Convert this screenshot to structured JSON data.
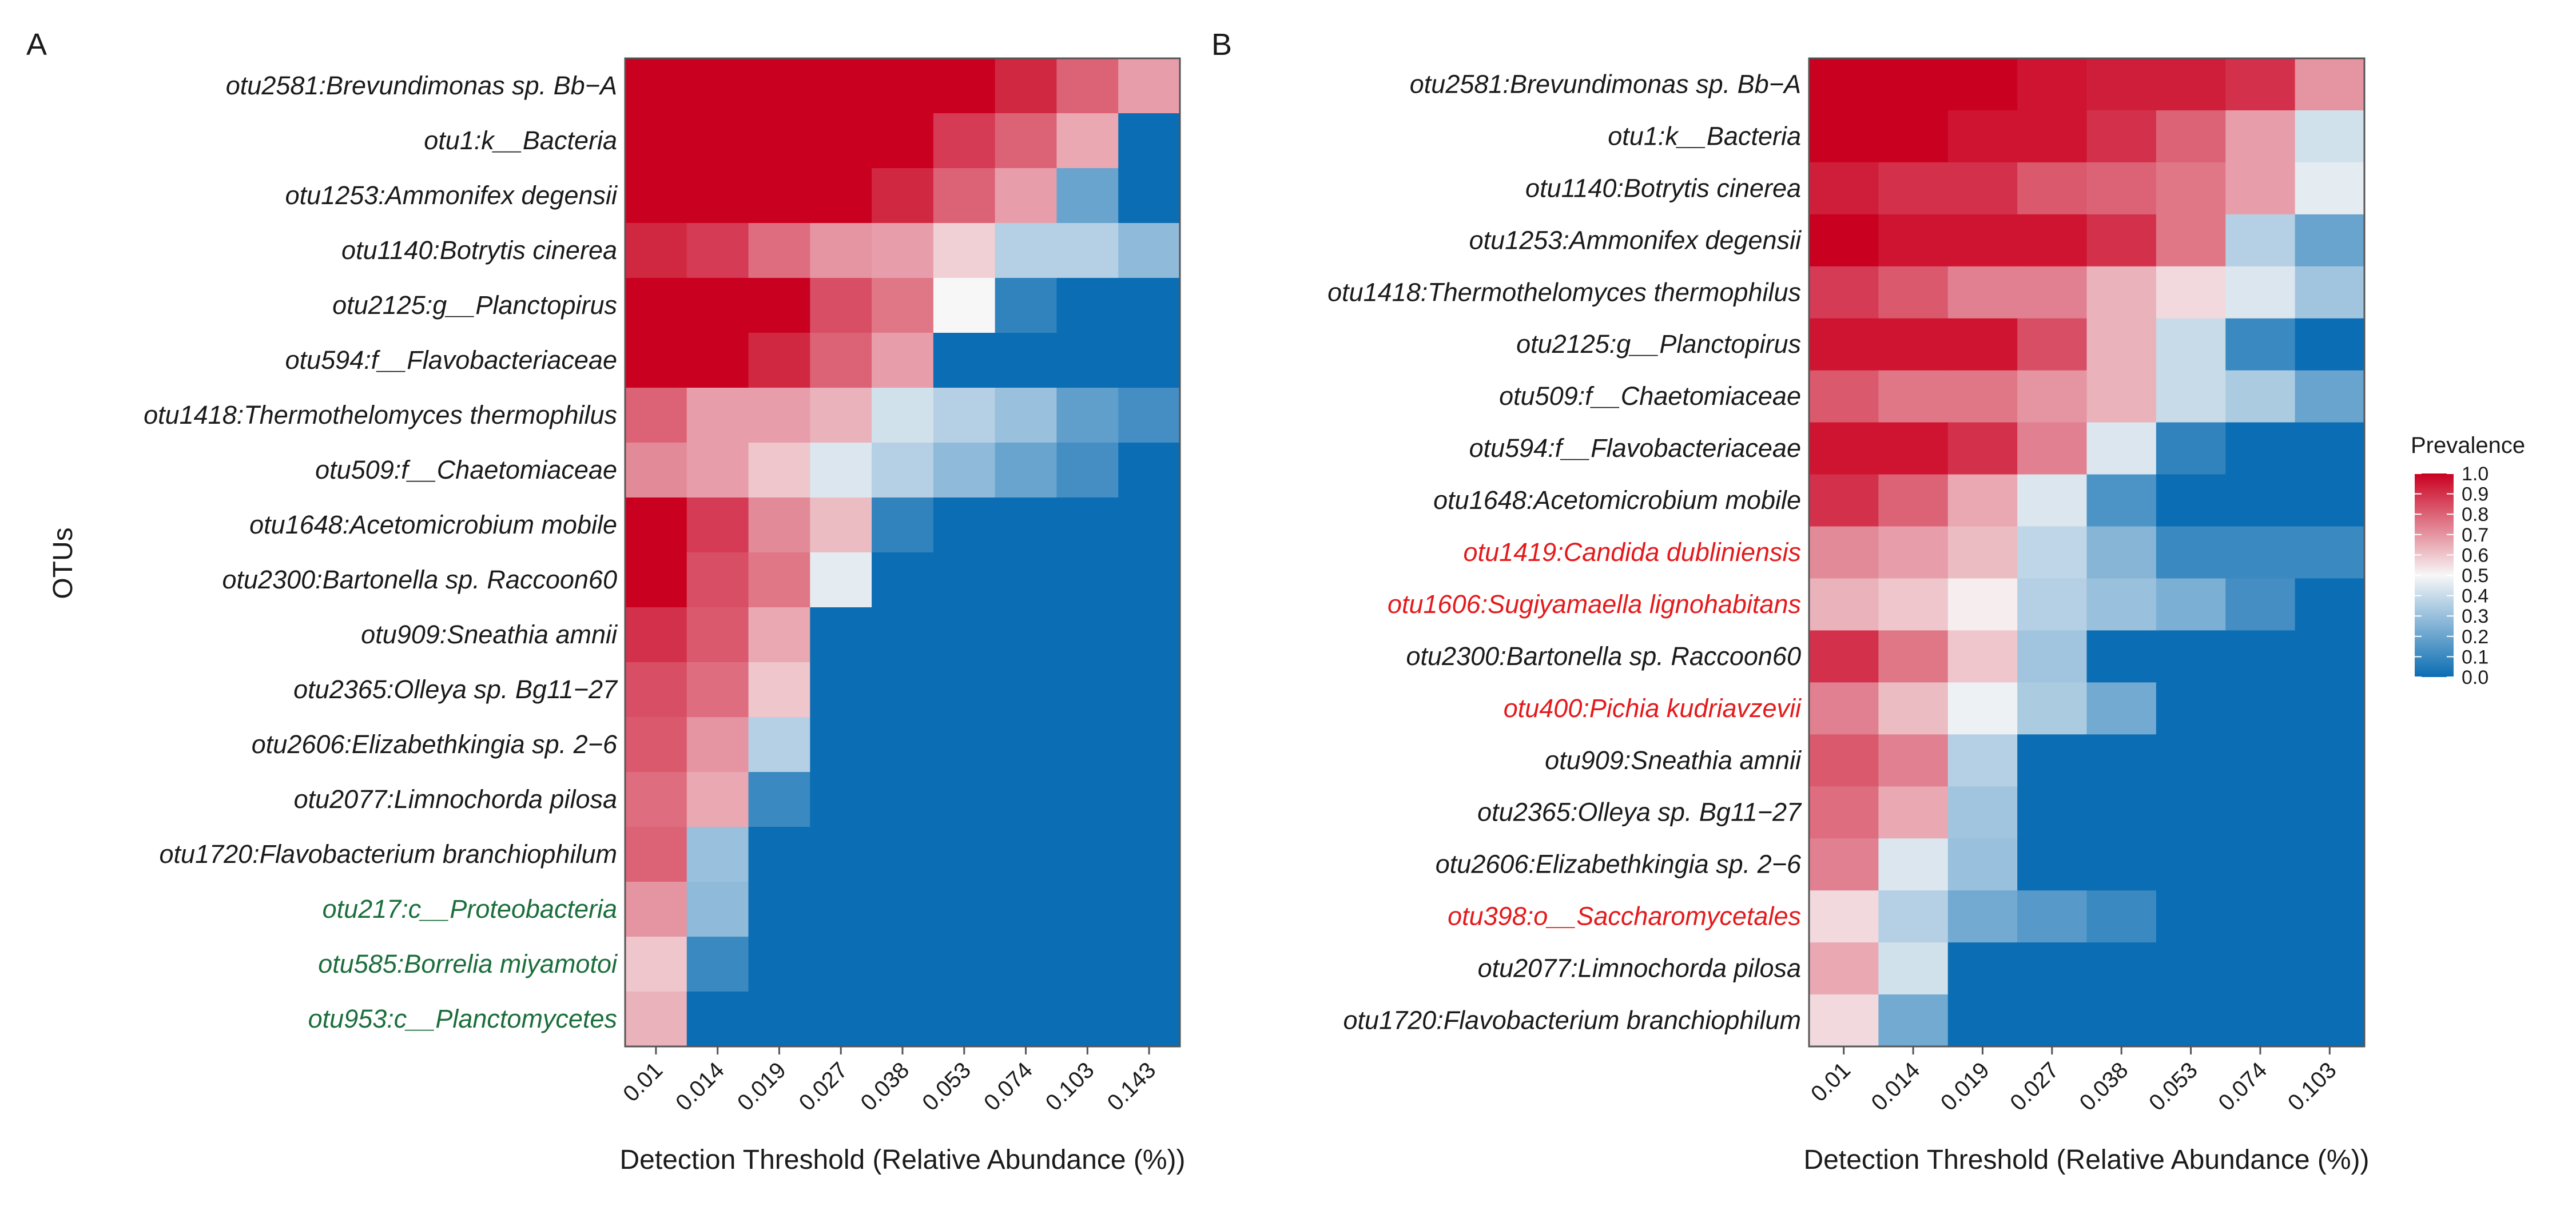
{
  "colors": {
    "low": "#0b6db3",
    "mid": "#f7f7f7",
    "high": "#ca0020",
    "highlight_green": "#1b6e3b",
    "highlight_red": "#e41a1c"
  },
  "legend": {
    "title": "Prevalence",
    "ticks": [
      "1.0",
      "0.9",
      "0.8",
      "0.7",
      "0.6",
      "0.5",
      "0.4",
      "0.3",
      "0.2",
      "0.1",
      "0.0"
    ]
  },
  "chart_data": [
    {
      "type": "heatmap",
      "panel_label": "A",
      "xlabel": "Detection Threshold (Relative Abundance (%))",
      "ylabel": "OTUs",
      "x": [
        "0.01",
        "0.014",
        "0.019",
        "0.027",
        "0.038",
        "0.053",
        "0.074",
        "0.103",
        "0.143"
      ],
      "y": [
        "otu2581:Brevundimonas sp. Bb−A",
        "otu1:k__Bacteria",
        "otu1253:Ammonifex degensii",
        "otu1140:Botrytis cinerea",
        "otu2125:g__Planctopirus",
        "otu594:f__Flavobacteriaceae",
        "otu1418:Thermothelomyces thermophilus",
        "otu509:f__Chaetomiaceae",
        "otu1648:Acetomicrobium mobile",
        "otu2300:Bartonella sp. Raccoon60",
        "otu909:Sneathia amnii",
        "otu2365:Olleya sp. Bg11−27",
        "otu2606:Elizabethkingia sp. 2−6",
        "otu2077:Limnochorda pilosa",
        "otu1720:Flavobacterium branchiophilum",
        "otu217:c__Proteobacteria",
        "otu585:Borrelia miyamotoi",
        "otu953:c__Planctomycetes"
      ],
      "highlighted_labels": {
        "otu217:c__Proteobacteria": "green",
        "otu585:Borrelia miyamotoi": "green",
        "otu953:c__Planctomycetes": "green"
      },
      "values": [
        [
          1.0,
          1.0,
          1.0,
          1.0,
          1.0,
          1.0,
          0.92,
          0.8,
          0.68
        ],
        [
          1.0,
          1.0,
          1.0,
          1.0,
          1.0,
          0.88,
          0.8,
          0.66,
          0.0
        ],
        [
          1.0,
          1.0,
          1.0,
          1.0,
          0.92,
          0.8,
          0.68,
          0.2,
          0.0
        ],
        [
          0.92,
          0.88,
          0.78,
          0.7,
          0.68,
          0.58,
          0.36,
          0.36,
          0.28
        ],
        [
          1.0,
          1.0,
          1.0,
          0.84,
          0.76,
          0.5,
          0.08,
          0.0,
          0.0
        ],
        [
          1.0,
          1.0,
          0.92,
          0.8,
          0.68,
          0.0,
          0.0,
          0.0,
          0.0
        ],
        [
          0.8,
          0.68,
          0.68,
          0.64,
          0.42,
          0.36,
          0.3,
          0.18,
          0.12
        ],
        [
          0.72,
          0.68,
          0.6,
          0.44,
          0.36,
          0.28,
          0.2,
          0.12,
          0.0
        ],
        [
          1.0,
          0.88,
          0.72,
          0.62,
          0.08,
          0.0,
          0.0,
          0.0,
          0.0
        ],
        [
          1.0,
          0.84,
          0.76,
          0.46,
          0.0,
          0.0,
          0.0,
          0.0,
          0.0
        ],
        [
          0.9,
          0.82,
          0.66,
          0.0,
          0.0,
          0.0,
          0.0,
          0.0,
          0.0
        ],
        [
          0.84,
          0.78,
          0.6,
          0.0,
          0.0,
          0.0,
          0.0,
          0.0,
          0.0
        ],
        [
          0.82,
          0.7,
          0.36,
          0.0,
          0.0,
          0.0,
          0.0,
          0.0,
          0.0
        ],
        [
          0.78,
          0.66,
          0.1,
          0.0,
          0.0,
          0.0,
          0.0,
          0.0,
          0.0
        ],
        [
          0.8,
          0.3,
          0.0,
          0.0,
          0.0,
          0.0,
          0.0,
          0.0,
          0.0
        ],
        [
          0.7,
          0.28,
          0.0,
          0.0,
          0.0,
          0.0,
          0.0,
          0.0,
          0.0
        ],
        [
          0.6,
          0.1,
          0.0,
          0.0,
          0.0,
          0.0,
          0.0,
          0.0,
          0.0
        ],
        [
          0.64,
          0.0,
          0.0,
          0.0,
          0.0,
          0.0,
          0.0,
          0.0,
          0.0
        ]
      ]
    },
    {
      "type": "heatmap",
      "panel_label": "B",
      "xlabel": "Detection Threshold (Relative Abundance (%))",
      "ylabel": "",
      "x": [
        "0.01",
        "0.014",
        "0.019",
        "0.027",
        "0.038",
        "0.053",
        "0.074",
        "0.103"
      ],
      "y": [
        "otu2581:Brevundimonas sp. Bb−A",
        "otu1:k__Bacteria",
        "otu1140:Botrytis cinerea",
        "otu1253:Ammonifex degensii",
        "otu1418:Thermothelomyces thermophilus",
        "otu2125:g__Planctopirus",
        "otu509:f__Chaetomiaceae",
        "otu594:f__Flavobacteriaceae",
        "otu1648:Acetomicrobium mobile",
        "otu1419:Candida dubliniensis",
        "otu1606:Sugiyamaella lignohabitans",
        "otu2300:Bartonella sp. Raccoon60",
        "otu400:Pichia kudriavzevii",
        "otu909:Sneathia amnii",
        "otu2365:Olleya sp. Bg11−27",
        "otu2606:Elizabethkingia sp. 2−6",
        "otu398:o__Saccharomycetales",
        "otu2077:Limnochorda pilosa",
        "otu1720:Flavobacterium branchiophilum"
      ],
      "highlighted_labels": {
        "otu1419:Candida dubliniensis": "red",
        "otu1606:Sugiyamaella lignohabitans": "red",
        "otu400:Pichia kudriavzevii": "red",
        "otu398:o__Saccharomycetales": "red"
      },
      "values": [
        [
          1.0,
          1.0,
          1.0,
          0.96,
          0.94,
          0.94,
          0.9,
          0.7
        ],
        [
          1.0,
          1.0,
          0.96,
          0.96,
          0.9,
          0.8,
          0.68,
          0.42
        ],
        [
          0.94,
          0.9,
          0.9,
          0.82,
          0.8,
          0.76,
          0.68,
          0.46
        ],
        [
          1.0,
          0.96,
          0.96,
          0.96,
          0.9,
          0.76,
          0.36,
          0.2
        ],
        [
          0.88,
          0.82,
          0.74,
          0.74,
          0.64,
          0.56,
          0.44,
          0.32
        ],
        [
          0.96,
          0.96,
          0.96,
          0.84,
          0.64,
          0.4,
          0.1,
          0.0
        ],
        [
          0.82,
          0.76,
          0.76,
          0.7,
          0.64,
          0.4,
          0.34,
          0.2
        ],
        [
          0.96,
          0.96,
          0.9,
          0.74,
          0.44,
          0.08,
          0.0,
          0.0
        ],
        [
          0.9,
          0.8,
          0.66,
          0.44,
          0.14,
          0.0,
          0.0,
          0.0
        ],
        [
          0.72,
          0.68,
          0.62,
          0.38,
          0.26,
          0.1,
          0.1,
          0.1
        ],
        [
          0.64,
          0.6,
          0.52,
          0.36,
          0.3,
          0.24,
          0.12,
          0.0
        ],
        [
          0.9,
          0.76,
          0.6,
          0.32,
          0.0,
          0.0,
          0.0,
          0.0
        ],
        [
          0.74,
          0.62,
          0.48,
          0.34,
          0.22,
          0.0,
          0.0,
          0.0
        ],
        [
          0.82,
          0.74,
          0.36,
          0.0,
          0.0,
          0.0,
          0.0,
          0.0
        ],
        [
          0.78,
          0.66,
          0.32,
          0.0,
          0.0,
          0.0,
          0.0,
          0.0
        ],
        [
          0.74,
          0.44,
          0.3,
          0.0,
          0.0,
          0.0,
          0.0,
          0.0
        ],
        [
          0.56,
          0.36,
          0.22,
          0.16,
          0.1,
          0.0,
          0.0,
          0.0
        ],
        [
          0.66,
          0.42,
          0.0,
          0.0,
          0.0,
          0.0,
          0.0,
          0.0
        ],
        [
          0.56,
          0.22,
          0.0,
          0.0,
          0.0,
          0.0,
          0.0,
          0.0
        ]
      ]
    }
  ]
}
